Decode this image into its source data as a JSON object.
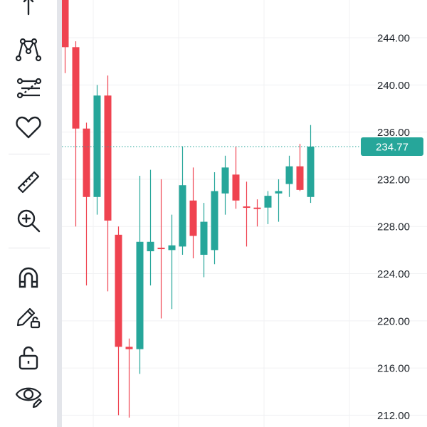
{
  "toolbar": {
    "tools": [
      {
        "name": "cursor-tool",
        "icon": "cross-arrow-icon"
      },
      {
        "name": "pattern-tool",
        "icon": "xabcd-pattern-icon"
      },
      {
        "name": "fib-tool",
        "icon": "fib-retracement-icon"
      },
      {
        "name": "favorites-tool",
        "icon": "heart-icon"
      },
      {
        "name": "measure-tool",
        "icon": "ruler-icon"
      },
      {
        "name": "zoom-tool",
        "icon": "zoom-in-icon"
      },
      {
        "name": "magnet-tool",
        "icon": "magnet-icon"
      },
      {
        "name": "lock-drawing-tool",
        "icon": "pencil-lock-icon"
      },
      {
        "name": "lock-all-tool",
        "icon": "unlock-icon"
      },
      {
        "name": "visibility-tool",
        "icon": "eye-icon"
      }
    ]
  },
  "colors": {
    "up": "#26a69a",
    "down": "#ef4350",
    "wick_up": "#26a69a",
    "wick_down": "#ef4350",
    "price_tag_bg": "#26a69a",
    "price_tag_text": "#ffffff",
    "grid": "#f0f1f3",
    "axis_text": "#1e2329"
  },
  "chart_data": {
    "type": "candlestick",
    "y_axis": {
      "labels": [
        "244.00",
        "240.00",
        "236.00",
        "232.00",
        "228.00",
        "224.00",
        "220.00",
        "216.00",
        "212.00"
      ],
      "values": [
        244,
        240,
        236,
        232,
        228,
        224,
        220,
        216,
        212
      ],
      "visible_range": [
        211.0,
        247.2
      ],
      "position": "right"
    },
    "current_price": {
      "value": 234.77,
      "label": "234.77",
      "line": "dotted"
    },
    "grid": true,
    "candles": [
      {
        "o": 249.0,
        "h": 250.0,
        "l": 241.0,
        "c": 243.2
      },
      {
        "o": 243.2,
        "h": 243.7,
        "l": 228.0,
        "c": 236.3
      },
      {
        "o": 236.3,
        "h": 236.8,
        "l": 223.0,
        "c": 230.5
      },
      {
        "o": 230.5,
        "h": 240.0,
        "l": 229.0,
        "c": 239.1
      },
      {
        "o": 239.1,
        "h": 240.8,
        "l": 222.5,
        "c": 228.5
      },
      {
        "o": 227.3,
        "h": 228.0,
        "l": 212.0,
        "c": 217.8
      },
      {
        "o": 217.8,
        "h": 218.5,
        "l": 211.8,
        "c": 217.6
      },
      {
        "o": 217.6,
        "h": 232.3,
        "l": 215.5,
        "c": 226.7
      },
      {
        "o": 225.9,
        "h": 232.8,
        "l": 223.0,
        "c": 226.7
      },
      {
        "o": 226.2,
        "h": 232.0,
        "l": 220.2,
        "c": 226.1
      },
      {
        "o": 226.0,
        "h": 229.0,
        "l": 221.0,
        "c": 226.4
      },
      {
        "o": 226.3,
        "h": 234.8,
        "l": 225.6,
        "c": 231.5
      },
      {
        "o": 230.2,
        "h": 233.0,
        "l": 225.3,
        "c": 227.2
      },
      {
        "o": 225.6,
        "h": 230.0,
        "l": 223.7,
        "c": 228.4
      },
      {
        "o": 226.0,
        "h": 232.6,
        "l": 224.8,
        "c": 231.0
      },
      {
        "o": 230.8,
        "h": 234.0,
        "l": 229.0,
        "c": 233.0
      },
      {
        "o": 232.4,
        "h": 234.8,
        "l": 229.5,
        "c": 230.2
      },
      {
        "o": 229.7,
        "h": 231.8,
        "l": 226.3,
        "c": 229.6
      },
      {
        "o": 229.6,
        "h": 230.3,
        "l": 228.0,
        "c": 229.5
      },
      {
        "o": 229.6,
        "h": 231.0,
        "l": 228.2,
        "c": 230.6
      },
      {
        "o": 230.8,
        "h": 232.0,
        "l": 228.4,
        "c": 231.0
      },
      {
        "o": 231.6,
        "h": 234.0,
        "l": 230.5,
        "c": 233.1
      },
      {
        "o": 233.1,
        "h": 235.0,
        "l": 231.0,
        "c": 231.1
      },
      {
        "o": 230.5,
        "h": 236.6,
        "l": 230.0,
        "c": 234.77
      }
    ]
  }
}
